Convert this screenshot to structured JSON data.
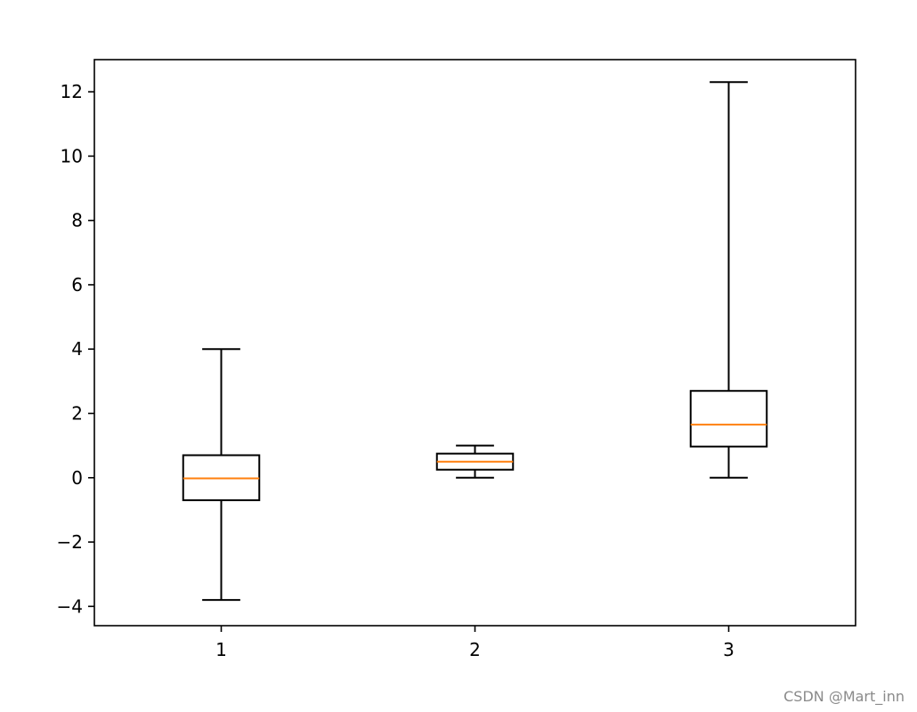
{
  "chart_data": {
    "type": "box",
    "title": "",
    "xlabel": "",
    "ylabel": "",
    "categories": [
      "1",
      "2",
      "3"
    ],
    "boxes": [
      {
        "label": "1",
        "whisker_low": -3.8,
        "q1": -0.7,
        "median": -0.02,
        "q3": 0.7,
        "whisker_high": 4.0
      },
      {
        "label": "2",
        "whisker_low": 0.0,
        "q1": 0.25,
        "median": 0.5,
        "q3": 0.75,
        "whisker_high": 1.0
      },
      {
        "label": "3",
        "whisker_low": 0.0,
        "q1": 0.97,
        "median": 1.65,
        "q3": 2.7,
        "whisker_high": 12.3
      }
    ],
    "ylim": [
      -4.6,
      13.0
    ],
    "xlim": [
      0.5,
      3.5
    ],
    "yticks": [
      -4,
      -2,
      0,
      2,
      4,
      6,
      8,
      10,
      12
    ],
    "ytick_labels": [
      "−4",
      "−2",
      "0",
      "2",
      "4",
      "6",
      "8",
      "10",
      "12"
    ],
    "grid": false,
    "colors": {
      "box": "#000000",
      "median": "#ff7f0e"
    }
  },
  "watermark": "CSDN @Mart_inn"
}
